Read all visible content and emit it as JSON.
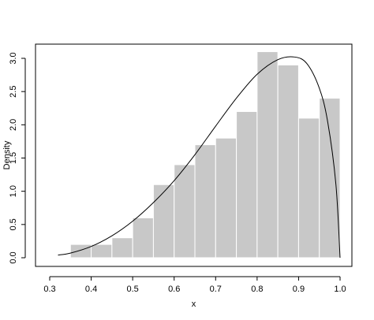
{
  "chart_data": {
    "type": "bar",
    "title": "",
    "xlabel": "x",
    "ylabel": "Density",
    "xlim": [
      0.3,
      1.0
    ],
    "ylim": [
      0.0,
      3.0
    ],
    "grid": false,
    "legend": "none",
    "x_ticks": [
      "0.3",
      "0.4",
      "0.5",
      "0.6",
      "0.7",
      "0.8",
      "0.9",
      "1.0"
    ],
    "y_ticks": [
      "0.0",
      "0.5",
      "1.0",
      "1.5",
      "2.0",
      "2.5",
      "3.0"
    ],
    "histogram": {
      "bin_edges": [
        0.35,
        0.4,
        0.45,
        0.5,
        0.55,
        0.6,
        0.65,
        0.7,
        0.75,
        0.8,
        0.85,
        0.9,
        0.95,
        1.0
      ],
      "densities": [
        0.2,
        0.2,
        0.3,
        0.6,
        1.1,
        1.4,
        1.7,
        1.8,
        2.2,
        3.1,
        2.9,
        2.1,
        2.4
      ]
    },
    "curve": {
      "x": [
        0.32,
        0.35,
        0.4,
        0.45,
        0.5,
        0.55,
        0.6,
        0.65,
        0.7,
        0.75,
        0.8,
        0.85,
        0.89,
        0.92,
        0.95,
        0.97,
        0.99,
        1.0
      ],
      "y": [
        0.04,
        0.07,
        0.17,
        0.33,
        0.55,
        0.83,
        1.16,
        1.55,
        1.98,
        2.4,
        2.76,
        2.98,
        3.02,
        2.92,
        2.55,
        2.05,
        1.1,
        0.0
      ]
    },
    "colors": {
      "bar_fill": "#c8c8c8",
      "bar_stroke": "#ffffff",
      "curve": "#000000",
      "axis": "#000000"
    }
  }
}
